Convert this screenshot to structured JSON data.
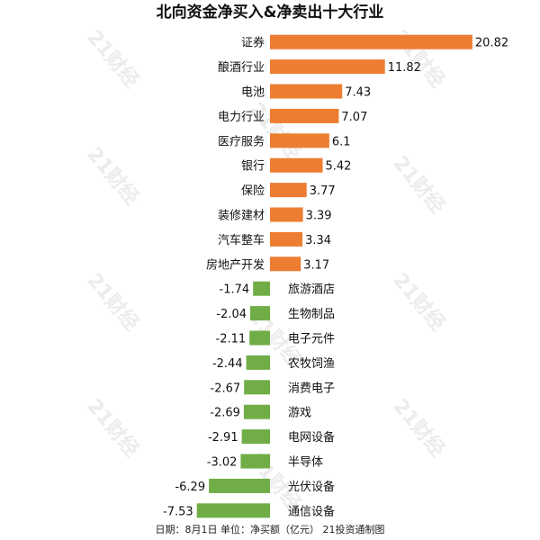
{
  "chart_data": {
    "type": "bar",
    "orientation": "horizontal",
    "title": "北向资金净买入&净卖出十大行业",
    "footer": "日期：8月1日 单位：净买额（亿元） 21投资通制图",
    "watermark": "21财经",
    "categories": [
      "证券",
      "酿酒行业",
      "电池",
      "电力行业",
      "医疗服务",
      "银行",
      "保险",
      "装修建材",
      "汽车整车",
      "房地产开发",
      "旅游酒店",
      "生物制品",
      "电子元件",
      "农牧饲渔",
      "消费电子",
      "游戏",
      "电网设备",
      "半导体",
      "光伏设备",
      "通信设备"
    ],
    "values": [
      20.82,
      11.82,
      7.43,
      7.07,
      6.1,
      5.42,
      3.77,
      3.39,
      3.34,
      3.17,
      -1.74,
      -2.04,
      -2.11,
      -2.44,
      -2.67,
      -2.69,
      -2.91,
      -3.02,
      -6.29,
      -7.53
    ],
    "value_labels": [
      "20.82",
      "11.82",
      "7.43",
      "7.07",
      "6.1",
      "5.42",
      "3.77",
      "3.39",
      "3.34",
      "3.17",
      "-1.74",
      "-2.04",
      "-2.11",
      "-2.44",
      "-2.67",
      "-2.69",
      "-2.91",
      "-3.02",
      "-6.29",
      "-7.53"
    ],
    "positive_color": "#ED7D31",
    "negative_color": "#70AD47",
    "grid": false,
    "legend": "none"
  }
}
